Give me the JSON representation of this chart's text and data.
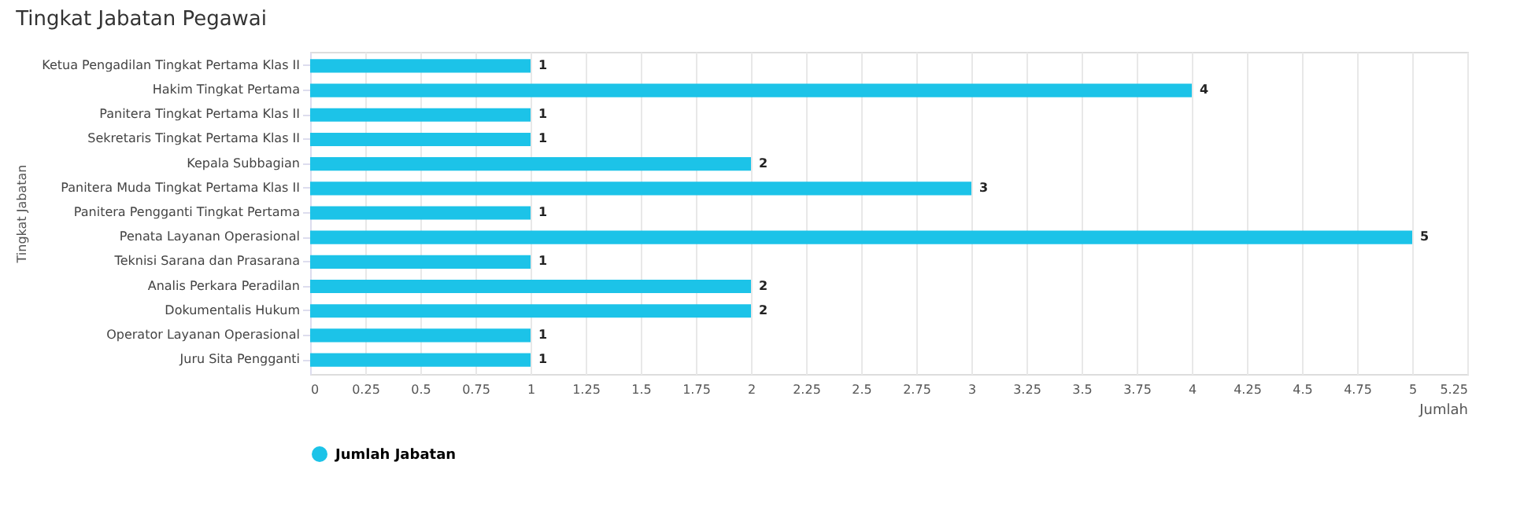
{
  "chart_data": {
    "type": "bar",
    "orientation": "horizontal",
    "title": "Tingkat Jabatan Pegawai",
    "xlabel": "Jumlah",
    "ylabel": "Tingkat Jabatan",
    "categories": [
      "Ketua Pengadilan Tingkat Pertama Klas II",
      "Hakim Tingkat Pertama",
      "Panitera Tingkat Pertama Klas II",
      "Sekretaris Tingkat Pertama Klas II",
      "Kepala Subbagian",
      "Panitera Muda Tingkat Pertama Klas II",
      "Panitera Pengganti Tingkat Pertama",
      "Penata Layanan Operasional",
      "Teknisi Sarana dan Prasarana",
      "Analis Perkara Peradilan",
      "Dokumentalis Hukum",
      "Operator Layanan Operasional",
      "Juru Sita Pengganti"
    ],
    "series": [
      {
        "name": "Jumlah Jabatan",
        "color": "#1cc3e8",
        "values": [
          1,
          4,
          1,
          1,
          2,
          3,
          1,
          5,
          1,
          2,
          2,
          1,
          1
        ]
      }
    ],
    "xlim": [
      0,
      5.25
    ],
    "xticks": [
      0,
      0.25,
      0.5,
      0.75,
      1,
      1.25,
      1.5,
      1.75,
      2,
      2.25,
      2.5,
      2.75,
      3,
      3.25,
      3.5,
      3.75,
      4,
      4.25,
      4.5,
      4.75,
      5,
      5.25
    ],
    "data_labels": true,
    "grid": "x",
    "legend": "bottom"
  }
}
